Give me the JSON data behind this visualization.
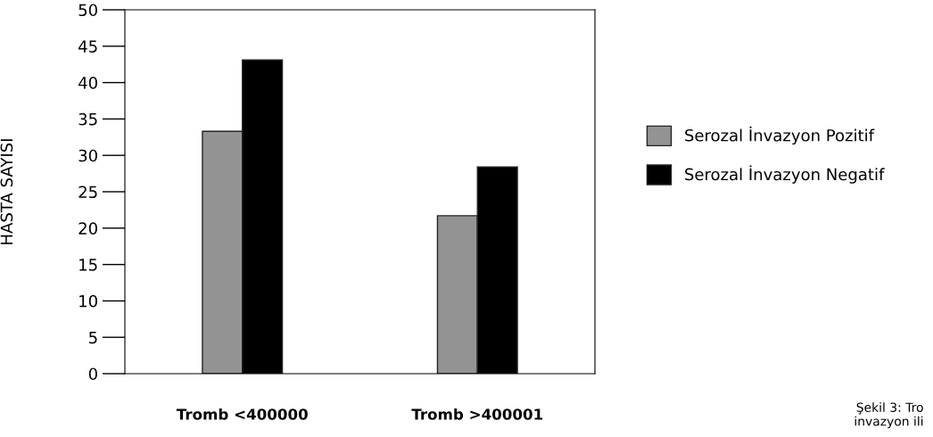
{
  "chart_data": {
    "type": "bar",
    "ylabel": "HASTA SAYISI",
    "categories": [
      "Tromb <400000",
      "Tromb >400001"
    ],
    "series": [
      {
        "name": "Serozal İnvazyon Pozitif",
        "color": "#939393",
        "values": [
          33.3,
          21.7
        ]
      },
      {
        "name": "Serozal İnvazyon Negatif",
        "color": "#000000",
        "values": [
          43.1,
          28.4
        ]
      }
    ],
    "ylim": [
      0,
      50
    ],
    "yticks": [
      0,
      5,
      10,
      15,
      20,
      25,
      30,
      35,
      40,
      45,
      50
    ],
    "grid": false,
    "legend": "right",
    "annotations": [
      "Şekil 3: Tro\ninvazyon ili"
    ]
  }
}
